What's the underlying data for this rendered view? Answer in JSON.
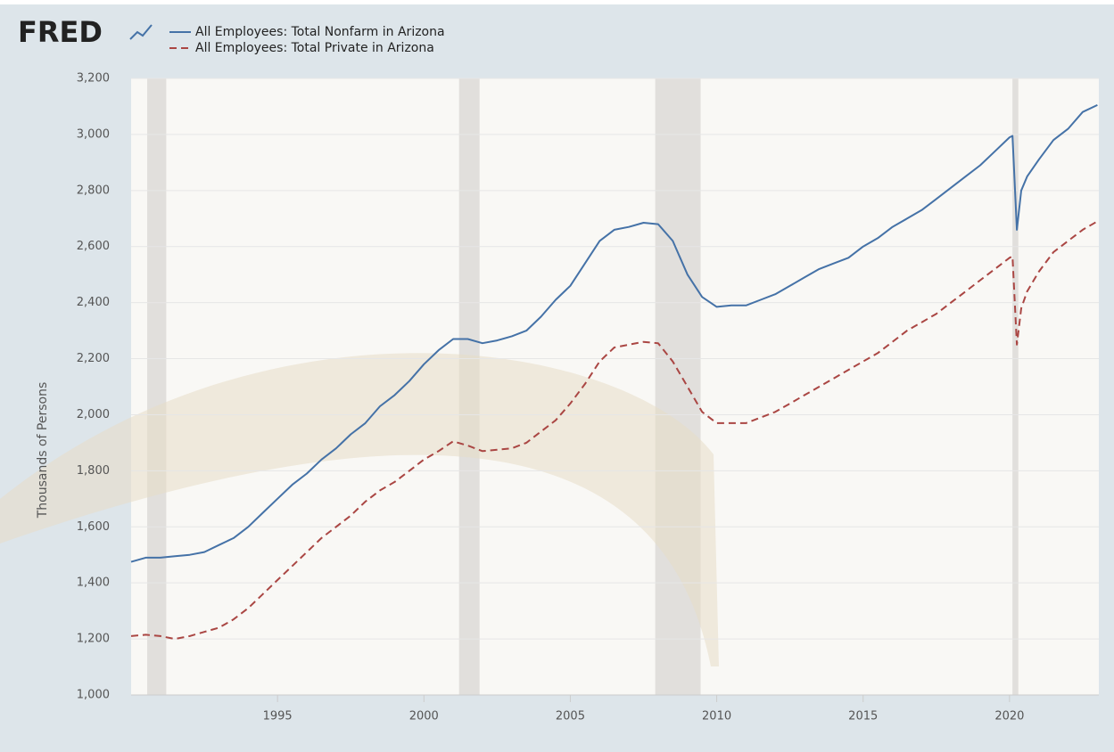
{
  "logo": "FRED",
  "chart_data": {
    "type": "line",
    "y_label": "Thousands of Persons",
    "x": [
      1990,
      1990.5,
      1991,
      1991.5,
      1992,
      1992.5,
      1993,
      1993.5,
      1994,
      1994.5,
      1995,
      1995.5,
      1996,
      1996.5,
      1997,
      1997.5,
      1998,
      1998.5,
      1999,
      1999.5,
      2000,
      2000.5,
      2001,
      2001.5,
      2002,
      2002.5,
      2003,
      2003.5,
      2004,
      2004.5,
      2005,
      2005.5,
      2006,
      2006.5,
      2007,
      2007.5,
      2008,
      2008.5,
      2009,
      2009.5,
      2010,
      2010.5,
      2011,
      2011.5,
      2012,
      2012.5,
      2013,
      2013.5,
      2014,
      2014.5,
      2015,
      2015.5,
      2016,
      2016.5,
      2017,
      2017.5,
      2018,
      2018.5,
      2019,
      2019.5,
      2020,
      2020.1,
      2020.25,
      2020.4,
      2020.6,
      2021,
      2021.5,
      2022,
      2022.5,
      2023
    ],
    "series": [
      {
        "name": "All Employees: Total Nonfarm in Arizona",
        "color": "#4572a7",
        "dash": false,
        "values": [
          1475,
          1490,
          1490,
          1495,
          1500,
          1510,
          1535,
          1560,
          1600,
          1650,
          1700,
          1750,
          1790,
          1840,
          1880,
          1930,
          1970,
          2030,
          2070,
          2120,
          2180,
          2230,
          2270,
          2270,
          2255,
          2265,
          2280,
          2300,
          2350,
          2410,
          2460,
          2540,
          2620,
          2660,
          2670,
          2685,
          2680,
          2620,
          2500,
          2420,
          2385,
          2390,
          2390,
          2410,
          2430,
          2460,
          2490,
          2520,
          2540,
          2560,
          2600,
          2630,
          2670,
          2700,
          2730,
          2770,
          2810,
          2850,
          2890,
          2940,
          2990,
          2995,
          2660,
          2800,
          2850,
          2910,
          2980,
          3020,
          3080,
          3105
        ]
      },
      {
        "name": "All Employees: Total Private in Arizona",
        "color": "#aa4643",
        "dash": true,
        "values": [
          1210,
          1215,
          1210,
          1200,
          1210,
          1225,
          1240,
          1270,
          1310,
          1360,
          1410,
          1460,
          1510,
          1560,
          1600,
          1640,
          1690,
          1730,
          1760,
          1800,
          1840,
          1870,
          1905,
          1890,
          1870,
          1875,
          1880,
          1900,
          1940,
          1980,
          2040,
          2110,
          2190,
          2240,
          2250,
          2260,
          2255,
          2190,
          2100,
          2010,
          1970,
          1970,
          1970,
          1990,
          2010,
          2040,
          2070,
          2100,
          2130,
          2160,
          2190,
          2220,
          2260,
          2300,
          2330,
          2360,
          2400,
          2440,
          2480,
          2520,
          2560,
          2565,
          2250,
          2380,
          2440,
          2510,
          2580,
          2620,
          2660,
          2690
        ]
      }
    ],
    "recessions": [
      [
        1990.55,
        1991.2
      ],
      [
        2001.2,
        2001.9
      ],
      [
        2007.9,
        2009.45
      ],
      [
        2020.1,
        2020.3
      ]
    ],
    "recession_color": "#e1dfdc",
    "xlim": [
      1990,
      2023.05
    ],
    "xticks": [
      1995,
      2000,
      2005,
      2010,
      2015,
      2020
    ],
    "ylim": [
      1000,
      3200
    ],
    "yticks": [
      {
        "value": 1000,
        "label": "1,000"
      },
      {
        "value": 1200,
        "label": "1,200"
      },
      {
        "value": 1400,
        "label": "1,400"
      },
      {
        "value": 1600,
        "label": "1,600"
      },
      {
        "value": 1800,
        "label": "1,800"
      },
      {
        "value": 2000,
        "label": "2,000"
      },
      {
        "value": 2200,
        "label": "2,200"
      },
      {
        "value": 2400,
        "label": "2,400"
      },
      {
        "value": 2600,
        "label": "2,600"
      },
      {
        "value": 2800,
        "label": "2,800"
      },
      {
        "value": 3000,
        "label": "3,000"
      },
      {
        "value": 3200,
        "label": "3,200"
      }
    ],
    "grid": true
  }
}
